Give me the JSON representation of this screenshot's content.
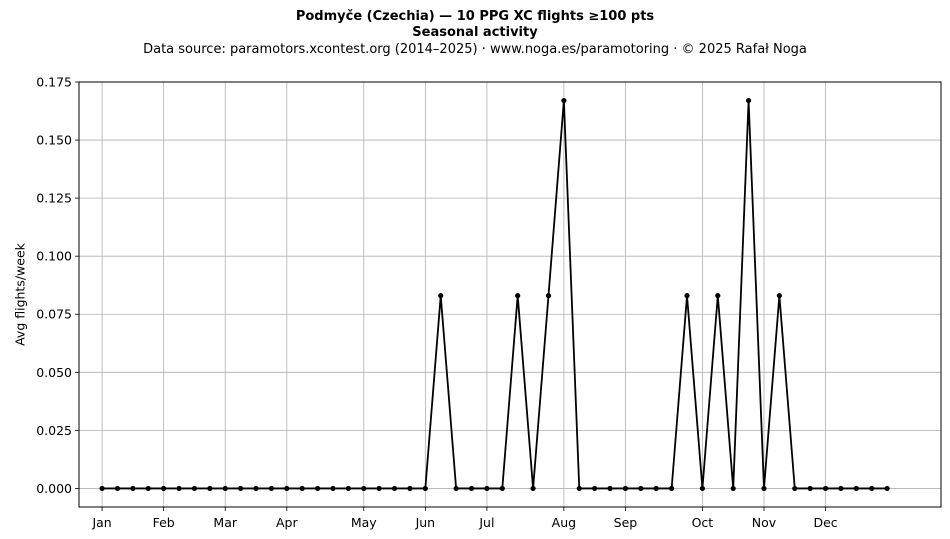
{
  "chart_data": {
    "type": "line",
    "title": "Podmyče (Czechia)  —  10 PPG XC flights ≥100 pts",
    "subtitle": "Seasonal activity",
    "source_note": "Data source: paramotors.xcontest.org (2014–2025)  ·  www.noga.es/paramotoring  ·  © 2025 Rafał Noga",
    "xlabel": "",
    "ylabel": "Avg flights/week",
    "ylim": [
      -0.008,
      0.175
    ],
    "xlim": [
      -1.5,
      54.5
    ],
    "yticks": [
      "0.000",
      "0.025",
      "0.050",
      "0.075",
      "0.100",
      "0.125",
      "0.150",
      "0.175"
    ],
    "month_ticks": [
      {
        "label": "Jan",
        "week": 0
      },
      {
        "label": "Feb",
        "week": 4
      },
      {
        "label": "Mar",
        "week": 8
      },
      {
        "label": "Apr",
        "week": 12
      },
      {
        "label": "May",
        "week": 17
      },
      {
        "label": "Jun",
        "week": 21
      },
      {
        "label": "Jul",
        "week": 25
      },
      {
        "label": "Aug",
        "week": 30
      },
      {
        "label": "Sep",
        "week": 34
      },
      {
        "label": "Oct",
        "week": 39
      },
      {
        "label": "Nov",
        "week": 43
      },
      {
        "label": "Dec",
        "week": 47
      }
    ],
    "grid": true,
    "color": "#000000",
    "series": [
      {
        "x": [
          0,
          1,
          2,
          3,
          4,
          5,
          6,
          7,
          8,
          9,
          10,
          11,
          12,
          13,
          14,
          15,
          16,
          17,
          18,
          19,
          20,
          21,
          22,
          23,
          24,
          25,
          26,
          27,
          28,
          29,
          30,
          31,
          32,
          33,
          34,
          35,
          36,
          37,
          38,
          39,
          40,
          41,
          42,
          43,
          44,
          45,
          46,
          47,
          48,
          49,
          50,
          51
        ],
        "values": [
          0,
          0,
          0,
          0,
          0,
          0,
          0,
          0,
          0,
          0,
          0,
          0,
          0,
          0,
          0,
          0,
          0,
          0,
          0,
          0,
          0,
          0,
          0.083,
          0,
          0,
          0,
          0,
          0.083,
          0,
          0.083,
          0.167,
          0,
          0,
          0,
          0,
          0,
          0,
          0,
          0.083,
          0,
          0.083,
          0,
          0.167,
          0,
          0.083,
          0,
          0,
          0,
          0,
          0,
          0,
          0
        ]
      }
    ]
  }
}
